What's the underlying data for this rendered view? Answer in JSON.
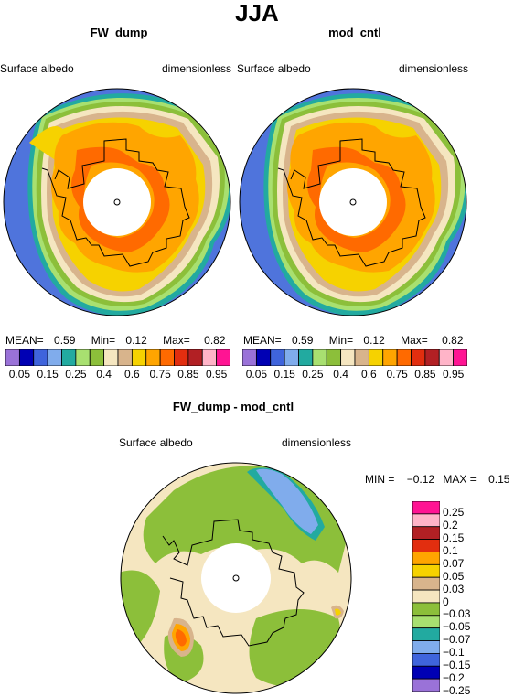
{
  "title": "JJA",
  "units_label": "dimensionless",
  "panels": [
    {
      "title": "FW_dump",
      "left_label": "Surface albedo",
      "right_label": "dimensionless",
      "stats": {
        "mean_label": "MEAN=",
        "mean": "0.59",
        "min_label": "Min=",
        "min": "0.12",
        "max_label": "Max=",
        "max": "0.82"
      }
    },
    {
      "title": "mod_cntl",
      "left_label": "Surface albedo",
      "right_label": "dimensionless",
      "stats": {
        "mean_label": "MEAN=",
        "mean": "0.59",
        "min_label": "Min=",
        "min": "0.12",
        "max_label": "Max=",
        "max": "0.82"
      }
    }
  ],
  "diff_panel": {
    "title": "FW_dump - mod_cntl",
    "left_label": "Surface albedo",
    "right_label": "dimensionless",
    "min_text": "MIN =",
    "min": "−0.12",
    "max_text": "MAX =",
    "max": "0.15"
  },
  "colorbar_main": {
    "colors": [
      "#9a72d8",
      "#0000b4",
      "#3f64dc",
      "#80acec",
      "#22aaa0",
      "#a8e070",
      "#8cbf3a",
      "#f5e6c0",
      "#d8b48c",
      "#f6d200",
      "#ffa500",
      "#ff6a00",
      "#e22e0f",
      "#b22024",
      "#ffb4c8",
      "#ff1493"
    ],
    "tick_labels": [
      "0.05",
      "0.15",
      "0.25",
      "0.4",
      "0.6",
      "0.75",
      "0.85",
      "0.95"
    ]
  },
  "colorbar_diff": {
    "colors": [
      "#ff1493",
      "#ffb4c8",
      "#b22024",
      "#e22e0f",
      "#ffa500",
      "#f6d200",
      "#d8b48c",
      "#f5e6c0",
      "#8cbf3a",
      "#a8e070",
      "#22aaa0",
      "#80acec",
      "#3f64dc",
      "#0000b4",
      "#9a72d8"
    ],
    "tick_labels": [
      "0.25",
      "0.2",
      "0.15",
      "0.1",
      "0.07",
      "0.05",
      "0.03",
      "0",
      "−0.03",
      "−0.05",
      "−0.07",
      "−0.1",
      "−0.15",
      "−0.2",
      "−0.25"
    ]
  }
}
